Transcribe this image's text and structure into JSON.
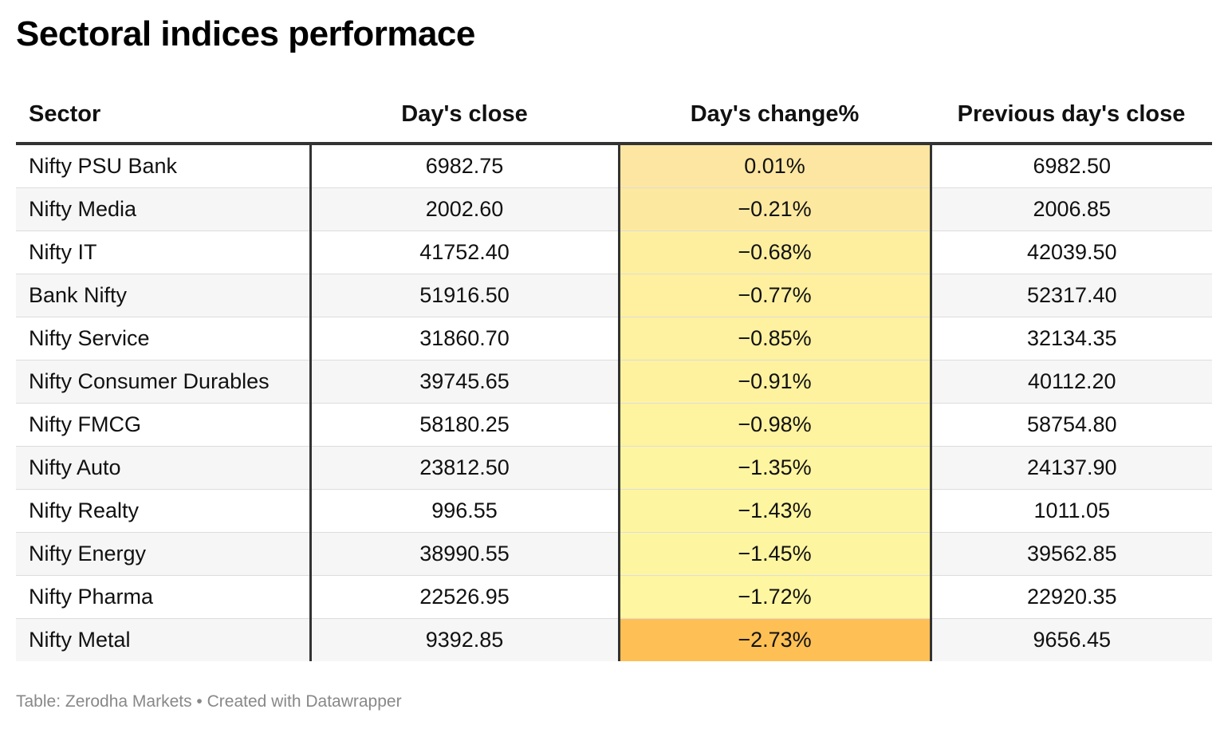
{
  "title": "Sectoral indices performace",
  "footer": "Table: Zerodha Markets • Created with Datawrapper",
  "chart_data": {
    "type": "table",
    "title": "Sectoral indices performace",
    "columns": [
      "Sector",
      "Day's close",
      "Day's change%",
      "Previous day's close"
    ],
    "rows": [
      {
        "sector": "Nifty PSU Bank",
        "close": "6982.75",
        "change": "0.01%",
        "prev": "6982.50",
        "change_value": 0.01,
        "heat_color": "#fde6a1"
      },
      {
        "sector": "Nifty Media",
        "close": "2002.60",
        "change": "−0.21%",
        "prev": "2006.85",
        "change_value": -0.21,
        "heat_color": "#fde8a0"
      },
      {
        "sector": "Nifty IT",
        "close": "41752.40",
        "change": "−0.68%",
        "prev": "42039.50",
        "change_value": -0.68,
        "heat_color": "#feef9f"
      },
      {
        "sector": "Bank Nifty",
        "close": "51916.50",
        "change": "−0.77%",
        "prev": "52317.40",
        "change_value": -0.77,
        "heat_color": "#fef09f"
      },
      {
        "sector": "Nifty Service",
        "close": "31860.70",
        "change": "−0.85%",
        "prev": "32134.35",
        "change_value": -0.85,
        "heat_color": "#fef19f"
      },
      {
        "sector": "Nifty Consumer Durables",
        "close": "39745.65",
        "change": "−0.91%",
        "prev": "40112.20",
        "change_value": -0.91,
        "heat_color": "#fef29f"
      },
      {
        "sector": "Nifty FMCG",
        "close": "58180.25",
        "change": "−0.98%",
        "prev": "58754.80",
        "change_value": -0.98,
        "heat_color": "#fef39f"
      },
      {
        "sector": "Nifty Auto",
        "close": "23812.50",
        "change": "−1.35%",
        "prev": "24137.90",
        "change_value": -1.35,
        "heat_color": "#fef5a0"
      },
      {
        "sector": "Nifty Realty",
        "close": "996.55",
        "change": "−1.43%",
        "prev": "1011.05",
        "change_value": -1.43,
        "heat_color": "#fef5a0"
      },
      {
        "sector": "Nifty Energy",
        "close": "38990.55",
        "change": "−1.45%",
        "prev": "39562.85",
        "change_value": -1.45,
        "heat_color": "#fef5a0"
      },
      {
        "sector": "Nifty Pharma",
        "close": "22526.95",
        "change": "−1.72%",
        "prev": "22920.35",
        "change_value": -1.72,
        "heat_color": "#fef6a0"
      },
      {
        "sector": "Nifty Metal",
        "close": "9392.85",
        "change": "−2.73%",
        "prev": "9656.45",
        "change_value": -2.73,
        "heat_color": "#febf55"
      }
    ]
  }
}
